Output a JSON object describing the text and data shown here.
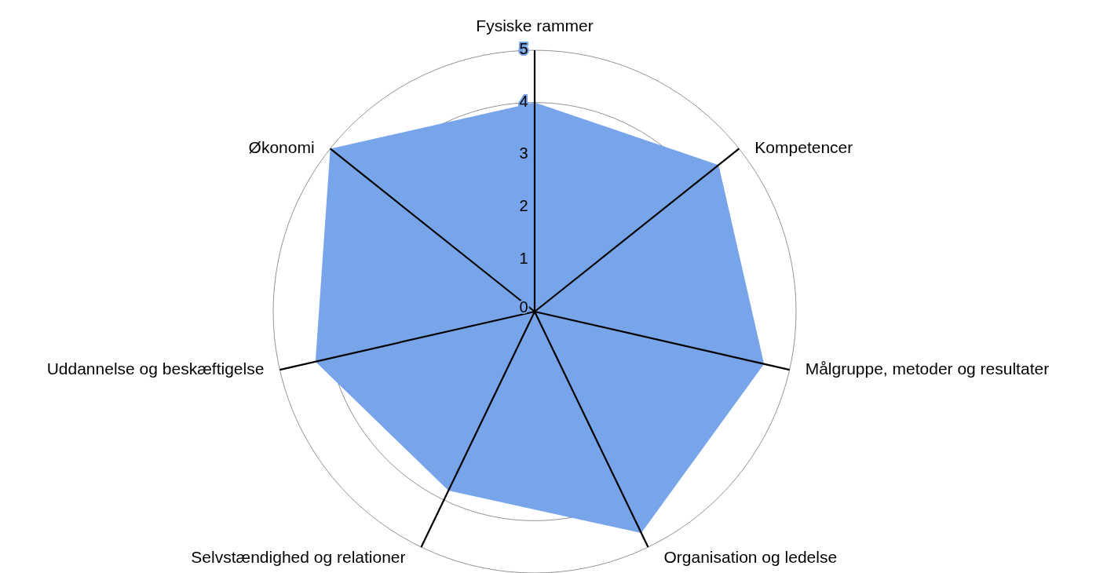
{
  "chart_data": {
    "type": "radar",
    "categories": [
      "Fysiske rammer",
      "Kompetencer",
      "Målgruppe, metoder og resultater",
      "Organisation og ledelse",
      "Selvstændighed og relationer",
      "Uddannelse og beskæftigelse",
      "Økonomi"
    ],
    "series": [
      {
        "color": "#78a5ea",
        "values": [
          4,
          4.5,
          4.5,
          4.7,
          3.8,
          4.3,
          5
        ]
      }
    ],
    "ylim": [
      0,
      5
    ],
    "yticks": [
      0,
      1,
      2,
      3,
      4,
      5
    ],
    "grid": true
  }
}
